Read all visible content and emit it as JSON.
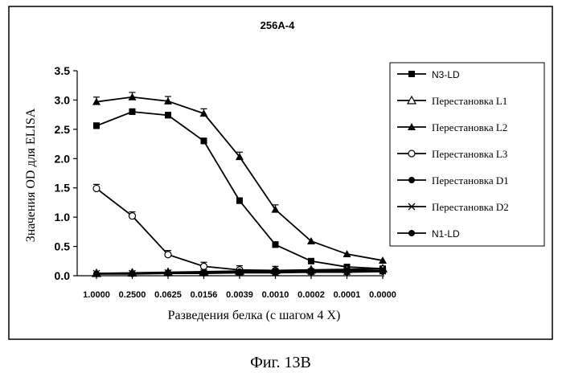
{
  "chart_data": {
    "type": "line",
    "title": "256A-4",
    "xlabel": "Разведения белка (с шагом 4 X)",
    "ylabel": "Значения OD для ELISA",
    "categories": [
      "1.0000",
      "0.2500",
      "0.0625",
      "0.0156",
      "0.0039",
      "0.0010",
      "0.0002",
      "0.0001",
      "0.0000"
    ],
    "ylim": [
      0,
      3.5
    ],
    "yticks": [
      "0.0",
      "0.5",
      "1.0",
      "1.5",
      "2.0",
      "2.5",
      "3.0",
      "3.5"
    ],
    "legend_position": "right",
    "series": [
      {
        "name": "N3-LD",
        "marker": "square",
        "values": [
          2.56,
          2.8,
          2.74,
          2.3,
          1.28,
          0.53,
          0.25,
          0.15,
          0.12
        ]
      },
      {
        "name": "Перестановка L1",
        "marker": "triangle-open",
        "values": [
          0.04,
          0.05,
          0.06,
          0.07,
          0.08,
          0.09,
          0.1,
          0.11,
          0.12
        ]
      },
      {
        "name": "Перестановка L2",
        "marker": "triangle",
        "values": [
          2.97,
          3.05,
          2.98,
          2.77,
          2.03,
          1.13,
          0.59,
          0.37,
          0.26
        ]
      },
      {
        "name": "Перестановка L3",
        "marker": "circle-open",
        "values": [
          1.49,
          1.02,
          0.36,
          0.16,
          0.1,
          0.09,
          0.08,
          0.08,
          0.08
        ]
      },
      {
        "name": "Перестановка D1",
        "marker": "circle",
        "values": [
          0.03,
          0.04,
          0.05,
          0.06,
          0.07,
          0.08,
          0.08,
          0.09,
          0.09
        ]
      },
      {
        "name": "Перестановка D2",
        "marker": "star",
        "values": [
          0.04,
          0.04,
          0.05,
          0.05,
          0.06,
          0.06,
          0.07,
          0.07,
          0.08
        ]
      },
      {
        "name": "N1-LD",
        "marker": "circle",
        "values": [
          0.03,
          0.03,
          0.04,
          0.04,
          0.05,
          0.05,
          0.06,
          0.06,
          0.07
        ]
      }
    ]
  },
  "caption": "Фиг. 13В"
}
